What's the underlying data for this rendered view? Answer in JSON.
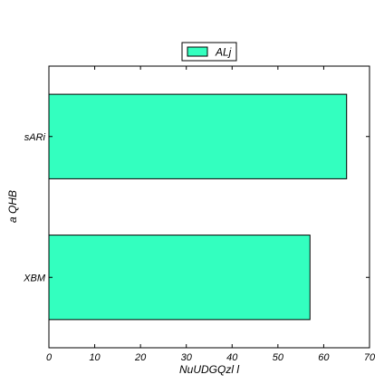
{
  "chart_data": {
    "type": "bar",
    "orientation": "horizontal",
    "categories": [
      "XBM",
      "sARi"
    ],
    "series": [
      {
        "name": "ALj",
        "values": [
          57,
          65
        ]
      }
    ],
    "xlabel": "NuUDGQzl l",
    "ylabel": "a QHB",
    "xlim": [
      0,
      70
    ],
    "xticks": [
      0,
      10,
      20,
      30,
      40,
      50,
      60,
      70
    ],
    "grid": false,
    "legend_position": "top-center",
    "colors": {
      "bar_fill": "#33ffbf",
      "bar_stroke": "#000000"
    }
  }
}
